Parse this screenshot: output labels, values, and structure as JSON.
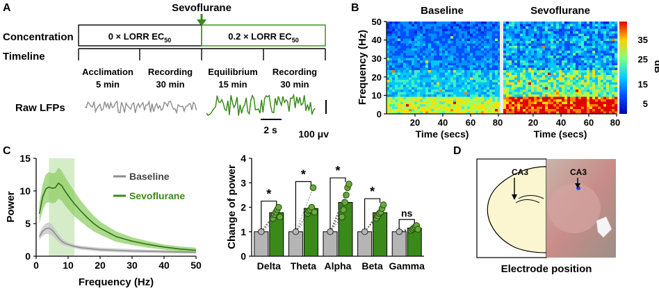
{
  "panels": {
    "a": {
      "label": "A",
      "drug_label": "Sevoflurane",
      "row_labels": [
        "Concentration",
        "Timeline"
      ],
      "conc_baseline": {
        "pre": "0 × LORR EC",
        "sub": "50"
      },
      "conc_sevo": {
        "pre": "0.2 × LORR EC",
        "sub": "50"
      },
      "phases": [
        {
          "name": "Acclimation",
          "duration": "5 min"
        },
        {
          "name": "Recording",
          "duration": "30 min"
        },
        {
          "name": "Equilibrium",
          "duration": "15 min"
        },
        {
          "name": "Recording",
          "duration": "30 min"
        }
      ],
      "lfp_label": "Raw LFPs",
      "time_scale": "2 s",
      "amp_scale": "100 μv",
      "colors": {
        "baseline": "#8c8c8c",
        "sevo": "#3a8a1a",
        "sevo_box": "#4a9a2a"
      }
    },
    "b": {
      "label": "B",
      "titles": [
        "Baseline",
        "Sevoflurane"
      ],
      "ylabel": "Frequency (Hz)",
      "xlabel": "Time (secs)",
      "yticks": [
        "0",
        "10",
        "20",
        "30",
        "40",
        "50"
      ],
      "xticks": [
        "20",
        "40",
        "60",
        "80"
      ],
      "colorbar_ticks": [
        "5",
        "15",
        "25",
        "35"
      ],
      "colorbar_label": "dB"
    },
    "c": {
      "label": "C",
      "title_left": "",
      "title_right": ""
    },
    "d": {
      "label": "D",
      "region_labels": [
        "CA3",
        "CA3"
      ],
      "caption": "Electrode position"
    }
  },
  "chart_data": [
    {
      "type": "line",
      "title": "",
      "xlabel": "Frequency (Hz)",
      "ylabel": "Power",
      "xlim": [
        0,
        50
      ],
      "ylim": [
        0,
        15
      ],
      "xticks": [
        0,
        10,
        20,
        30,
        40,
        50
      ],
      "yticks": [
        0,
        5,
        10,
        15
      ],
      "highlight_band": [
        4,
        12
      ],
      "legend": [
        "Baseline",
        "Sevoflurane"
      ],
      "series": [
        {
          "name": "Baseline",
          "color": "#8c8c8c",
          "x": [
            1,
            2,
            3,
            4,
            5,
            6,
            7,
            8,
            9,
            10,
            12,
            14,
            16,
            18,
            20,
            25,
            30,
            35,
            40,
            45,
            50
          ],
          "y": [
            3.0,
            3.8,
            4.2,
            4.3,
            4.0,
            3.4,
            2.8,
            2.3,
            2.0,
            1.8,
            1.5,
            1.3,
            1.2,
            1.1,
            1.0,
            0.9,
            0.8,
            0.75,
            0.7,
            0.65,
            0.6
          ],
          "upper": [
            3.5,
            4.5,
            5.0,
            5.2,
            4.8,
            4.1,
            3.4,
            2.8,
            2.4,
            2.1,
            1.8,
            1.6,
            1.5,
            1.4,
            1.3,
            1.2,
            1.1,
            1.0,
            0.95,
            0.9,
            0.85
          ],
          "lower": [
            2.5,
            3.1,
            3.4,
            3.4,
            3.2,
            2.7,
            2.2,
            1.8,
            1.6,
            1.5,
            1.2,
            1.0,
            0.9,
            0.8,
            0.7,
            0.6,
            0.55,
            0.5,
            0.45,
            0.4,
            0.4
          ]
        },
        {
          "name": "Sevoflurane",
          "color": "#3a8a1a",
          "x": [
            1,
            2,
            3,
            4,
            5,
            6,
            7,
            8,
            9,
            10,
            12,
            14,
            16,
            18,
            20,
            25,
            30,
            35,
            40,
            45,
            50
          ],
          "y": [
            6.5,
            9.0,
            10.3,
            10.6,
            10.4,
            10.5,
            11.2,
            10.8,
            10.0,
            9.3,
            8.0,
            6.9,
            5.9,
            5.0,
            4.3,
            3.0,
            2.3,
            1.8,
            1.4,
            1.1,
            0.9
          ],
          "upper": [
            8.0,
            11.0,
            12.5,
            12.9,
            12.7,
            12.8,
            13.6,
            13.1,
            12.2,
            11.4,
            9.9,
            8.5,
            7.3,
            6.2,
            5.3,
            3.8,
            2.9,
            2.3,
            1.8,
            1.5,
            1.3
          ],
          "lower": [
            5.0,
            7.0,
            8.1,
            8.3,
            8.1,
            8.2,
            8.8,
            8.5,
            7.8,
            7.2,
            6.1,
            5.3,
            4.5,
            3.8,
            3.3,
            2.2,
            1.7,
            1.3,
            1.0,
            0.7,
            0.5
          ]
        }
      ]
    },
    {
      "type": "bar",
      "title": "",
      "xlabel": "",
      "ylabel": "Change of power",
      "ylim": [
        0,
        4
      ],
      "yticks": [
        0,
        1,
        2,
        3,
        4
      ],
      "categories": [
        "Delta",
        "Theta",
        "Alpha",
        "Beta",
        "Gamma"
      ],
      "series": [
        {
          "name": "Baseline",
          "color": "#b5b5b5",
          "values": [
            1,
            1,
            1,
            1,
            1
          ]
        },
        {
          "name": "Sevoflurane",
          "color": "#3a8a1a",
          "values": [
            1.78,
            1.95,
            2.2,
            1.78,
            1.15
          ]
        }
      ],
      "points_sevo": [
        [
          1.55,
          1.7,
          1.8,
          1.9,
          2.0,
          1.6
        ],
        [
          1.75,
          1.85,
          1.9,
          2.0,
          2.8,
          1.8
        ],
        [
          1.6,
          1.9,
          2.2,
          2.5,
          2.8,
          2.95
        ],
        [
          1.55,
          1.65,
          1.75,
          1.8,
          1.95,
          2.1
        ],
        [
          1.05,
          1.1,
          1.15,
          1.2,
          1.25,
          1.1
        ]
      ],
      "significance": [
        "*",
        "*",
        "*",
        "*",
        "ns"
      ]
    }
  ]
}
